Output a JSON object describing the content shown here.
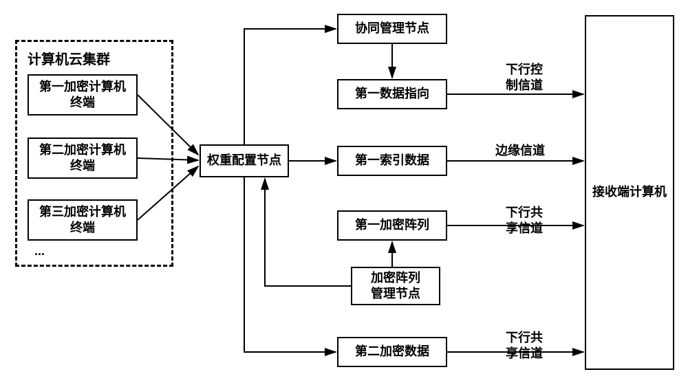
{
  "type": "flowchart",
  "background_color": "#ffffff",
  "box_border_color": "#000000",
  "box_border_width": 2,
  "dashed_border_width": 3,
  "text_color": "#000000",
  "font_family": "SimSun",
  "font_size": 18,
  "font_weight": "bold",
  "arrow_color": "#000000",
  "arrow_width": 2,
  "cluster": {
    "title": "计算机云集群",
    "terminals": [
      "第一加密计算机\n终端",
      "第二加密计算机\n终端",
      "第三加密计算机\n终端"
    ],
    "ellipsis": "..."
  },
  "nodes": {
    "weight_config": "权重配置节点",
    "co_mgmt": "协同管理节点",
    "first_data_dir": "第一数据指向",
    "first_index": "第一索引数据",
    "first_enc_array": "第一加密阵列",
    "enc_array_mgmt": "加密阵列\n管理节点",
    "second_enc_data": "第二加密数据",
    "receiver": "接收端计算机"
  },
  "channels": {
    "down_ctrl": "下行控\n制信道",
    "edge": "边缘信道",
    "down_share1": "下行共\n享信道",
    "down_share2": "下行共\n享信道"
  }
}
